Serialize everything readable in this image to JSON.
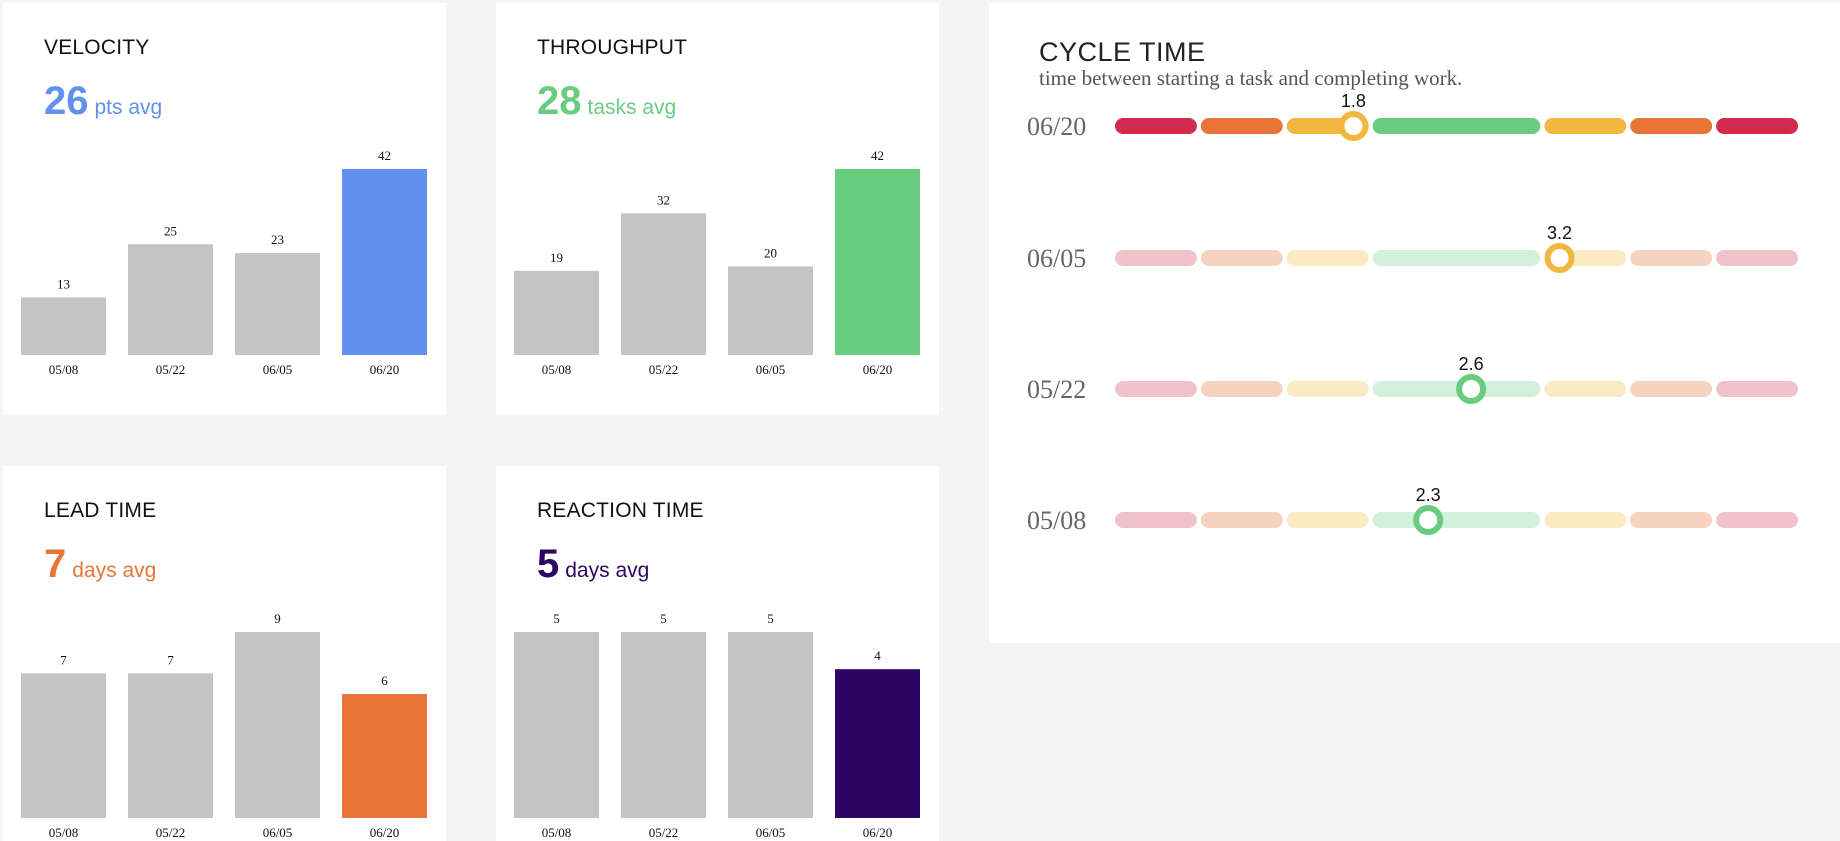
{
  "cards": [
    {
      "id": "velocity",
      "title": "VELOCITY",
      "avg_value": "26",
      "avg_unit": "pts avg",
      "accent": "#6190ef"
    },
    {
      "id": "throughput",
      "title": "THROUGHPUT",
      "avg_value": "28",
      "avg_unit": "tasks avg",
      "accent": "#69cc80"
    },
    {
      "id": "lead-time",
      "title": "LEAD TIME",
      "avg_value": "7",
      "avg_unit": "days avg",
      "accent": "#e87438"
    },
    {
      "id": "reaction-time",
      "title": "REACTION TIME",
      "avg_value": "5",
      "avg_unit": "days avg",
      "accent": "#2d0565"
    }
  ],
  "cycle_time": {
    "title": "CYCLE TIME",
    "subtitle": "time between starting a task and completing work."
  },
  "colors": {
    "inactive_bar": "#c4c4c4",
    "segment_red": "#d22b4d",
    "segment_orange": "#e87438",
    "segment_yellow": "#f0b840",
    "segment_green": "#69cc80"
  },
  "chart_data": [
    {
      "type": "bar",
      "title": "VELOCITY",
      "categories": [
        "05/08",
        "05/22",
        "06/05",
        "06/20"
      ],
      "values": [
        13,
        25,
        23,
        42
      ],
      "highlight_index": 3,
      "ylim": [
        0,
        42
      ]
    },
    {
      "type": "bar",
      "title": "THROUGHPUT",
      "categories": [
        "05/08",
        "05/22",
        "06/05",
        "06/20"
      ],
      "values": [
        19,
        32,
        20,
        42
      ],
      "highlight_index": 3,
      "ylim": [
        0,
        42
      ]
    },
    {
      "type": "bar",
      "title": "LEAD TIME",
      "categories": [
        "05/08",
        "05/22",
        "06/05",
        "06/20"
      ],
      "values": [
        7,
        7,
        9,
        6
      ],
      "highlight_index": 3,
      "ylim": [
        0,
        9
      ]
    },
    {
      "type": "bar",
      "title": "REACTION TIME",
      "categories": [
        "05/08",
        "05/22",
        "06/05",
        "06/20"
      ],
      "values": [
        5,
        5,
        5,
        4
      ],
      "highlight_index": 3,
      "ylim": [
        0,
        5
      ]
    },
    {
      "type": "scatter",
      "title": "CYCLE TIME",
      "subtitle": "time between starting a task and completing work.",
      "segments": [
        "red",
        "orange",
        "yellow",
        "green",
        "green",
        "yellow",
        "orange",
        "red"
      ],
      "xlim": [
        0,
        8
      ],
      "rows": [
        {
          "label": "06/20",
          "value": 1.8,
          "value_label": "1.8",
          "position": 2.8,
          "active": true,
          "marker_color": "yellow"
        },
        {
          "label": "06/05",
          "value": 3.2,
          "value_label": "3.2",
          "position": 5.2,
          "active": false,
          "marker_color": "yellow"
        },
        {
          "label": "05/22",
          "value": 2.6,
          "value_label": "2.6",
          "position": 4.17,
          "active": false,
          "marker_color": "green"
        },
        {
          "label": "05/08",
          "value": 2.3,
          "value_label": "2.3",
          "position": 3.67,
          "active": false,
          "marker_color": "green"
        }
      ]
    }
  ]
}
